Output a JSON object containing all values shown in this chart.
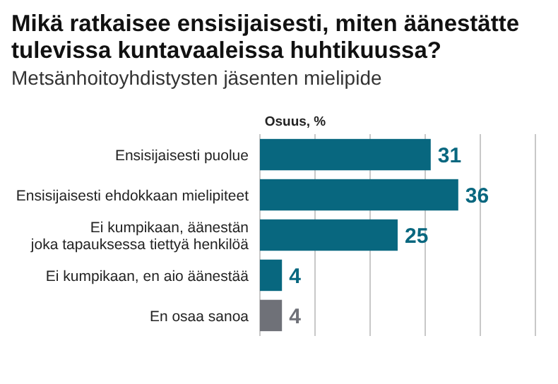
{
  "chart_data": {
    "type": "bar",
    "orientation": "horizontal",
    "title": "Mikä ratkaisee ensisijaisesti, miten äänestätte\ntulevissa kuntavaaleissa huhtikuussa?",
    "subtitle": "Metsänhoitoyhdistysten jäsenten mielipide",
    "xlabel": "Osuus, %",
    "categories": [
      "Ensisijaisesti puolue",
      "Ensisijaisesti ehdokkaan mielipiteet",
      "Ei kumpikaan, äänestän\njoka tapauksessa tiettyä henkilöä",
      "Ei kumpikaan, en aio äänestää",
      "En osaa sanoa"
    ],
    "values": [
      31,
      36,
      25,
      4,
      4
    ],
    "colors": [
      "#08677f",
      "#08677f",
      "#08677f",
      "#08677f",
      "#6f7178"
    ],
    "xlim": [
      0,
      50
    ],
    "xticks": [
      {
        "value": 0,
        "label": null
      },
      {
        "value": 10,
        "label": null
      },
      {
        "value": 20,
        "label": null
      },
      {
        "value": 30,
        "label": null
      },
      {
        "value": 40,
        "label": null
      },
      {
        "value": 50,
        "label": null
      }
    ],
    "grid": "x",
    "data_labels": true,
    "tick_labels": "y"
  }
}
